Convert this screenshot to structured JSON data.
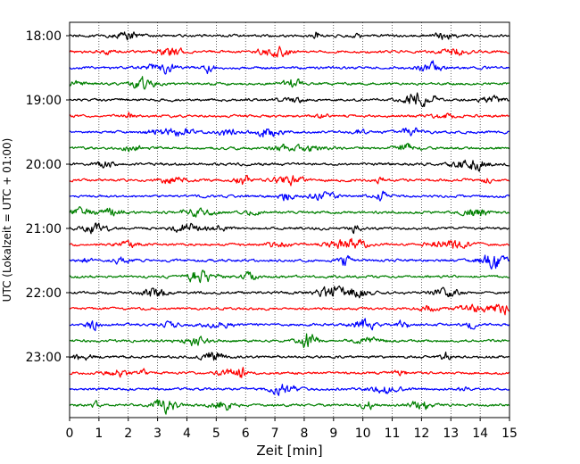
{
  "chart_data": {
    "type": "line",
    "title": "",
    "xlabel": "Zeit  [min]",
    "ylabel": "UTC (Lokalzeit = UTC + 01:00)",
    "xlim": [
      0,
      15
    ],
    "x_ticks": [
      "0",
      "1",
      "2",
      "3",
      "4",
      "5",
      "6",
      "7",
      "8",
      "9",
      "10",
      "11",
      "12",
      "13",
      "14",
      "15"
    ],
    "y_tick_labels": [
      "18:00",
      "19:00",
      "20:00",
      "21:00",
      "22:00",
      "23:00"
    ],
    "traces_per_hour": 4,
    "trace_color_cycle": [
      "#000000",
      "#ff0000",
      "#0000ff",
      "#008000"
    ],
    "grid": "vertical dotted lines at each minute",
    "series": [
      {
        "start": "18:00",
        "color": "#000000"
      },
      {
        "start": "18:15",
        "color": "#ff0000"
      },
      {
        "start": "18:30",
        "color": "#0000ff"
      },
      {
        "start": "18:45",
        "color": "#008000"
      },
      {
        "start": "19:00",
        "color": "#000000"
      },
      {
        "start": "19:15",
        "color": "#ff0000"
      },
      {
        "start": "19:30",
        "color": "#0000ff"
      },
      {
        "start": "19:45",
        "color": "#008000"
      },
      {
        "start": "20:00",
        "color": "#000000"
      },
      {
        "start": "20:15",
        "color": "#ff0000"
      },
      {
        "start": "20:30",
        "color": "#0000ff"
      },
      {
        "start": "20:45",
        "color": "#008000"
      },
      {
        "start": "21:00",
        "color": "#000000"
      },
      {
        "start": "21:15",
        "color": "#ff0000"
      },
      {
        "start": "21:30",
        "color": "#0000ff"
      },
      {
        "start": "21:45",
        "color": "#008000"
      },
      {
        "start": "22:00",
        "color": "#000000"
      },
      {
        "start": "22:15",
        "color": "#ff0000"
      },
      {
        "start": "22:30",
        "color": "#0000ff"
      },
      {
        "start": "22:45",
        "color": "#008000"
      },
      {
        "start": "23:00",
        "color": "#000000"
      },
      {
        "start": "23:15",
        "color": "#ff0000"
      },
      {
        "start": "23:30",
        "color": "#0000ff"
      },
      {
        "start": "23:45",
        "color": "#008000"
      }
    ]
  }
}
